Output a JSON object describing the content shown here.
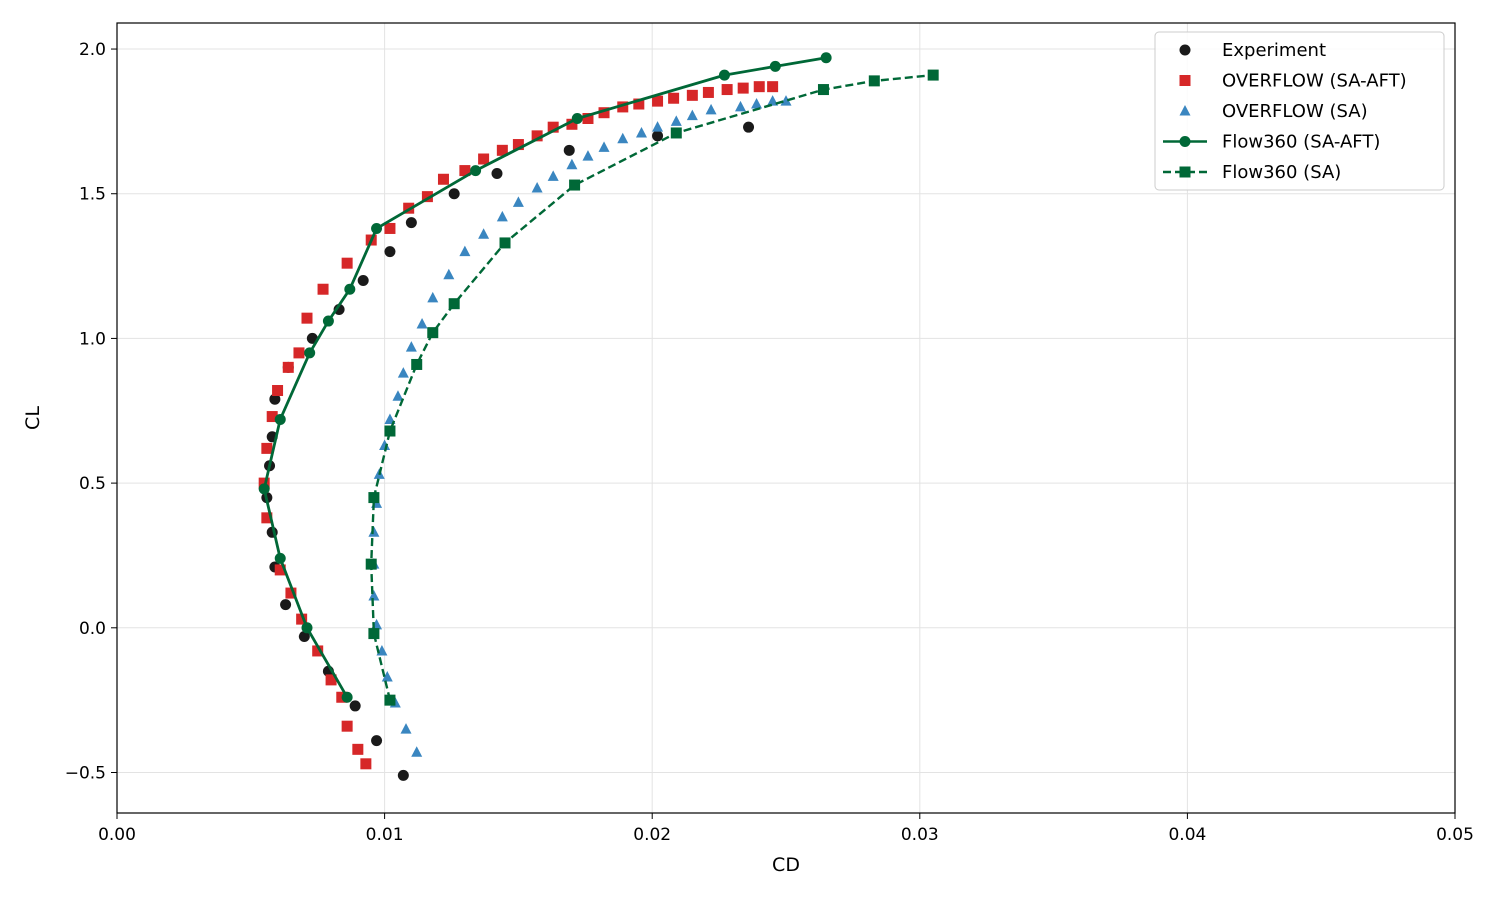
{
  "chart_data": {
    "type": "scatter",
    "xlabel": "CD",
    "ylabel": "CL",
    "xlim": [
      0.0,
      0.05
    ],
    "ylim": [
      -0.64,
      2.09
    ],
    "xticks": [
      0.0,
      0.01,
      0.02,
      0.03,
      0.04,
      0.05
    ],
    "xtick_labels": [
      "0.00",
      "0.01",
      "0.02",
      "0.03",
      "0.04",
      "0.05"
    ],
    "yticks": [
      -0.5,
      0.0,
      0.5,
      1.0,
      1.5,
      2.0
    ],
    "ytick_labels": [
      "−0.5",
      "0.0",
      "0.5",
      "1.0",
      "1.5",
      "2.0"
    ],
    "grid": true,
    "legend_position": "top-right",
    "series": [
      {
        "name": "Experiment",
        "style": "scatter",
        "marker": "circle",
        "color": "#1a1a1a",
        "x": [
          0.0107,
          0.0097,
          0.0089,
          0.0079,
          0.007,
          0.0063,
          0.0059,
          0.0058,
          0.0056,
          0.0057,
          0.0058,
          0.0059,
          0.0064,
          0.0073,
          0.0083,
          0.0092,
          0.0102,
          0.011,
          0.0126,
          0.0142,
          0.0169,
          0.0202,
          0.0236
        ],
        "y": [
          -0.51,
          -0.39,
          -0.27,
          -0.15,
          -0.03,
          0.08,
          0.21,
          0.33,
          0.45,
          0.56,
          0.66,
          0.79,
          0.9,
          1.0,
          1.1,
          1.2,
          1.3,
          1.4,
          1.5,
          1.57,
          1.65,
          1.7,
          1.73
        ]
      },
      {
        "name": "OVERFLOW (SA-AFT)",
        "style": "scatter",
        "marker": "square",
        "color": "#d62728",
        "x": [
          0.0093,
          0.009,
          0.0086,
          0.0084,
          0.008,
          0.0075,
          0.0069,
          0.0065,
          0.0061,
          0.0056,
          0.0055,
          0.0056,
          0.0058,
          0.006,
          0.0064,
          0.0068,
          0.0071,
          0.0077,
          0.0086,
          0.0095,
          0.0102,
          0.0109,
          0.0116,
          0.0122,
          0.013,
          0.0137,
          0.0144,
          0.015,
          0.0157,
          0.0163,
          0.017,
          0.0176,
          0.0182,
          0.0189,
          0.0195,
          0.0202,
          0.0208,
          0.0215,
          0.0221,
          0.0228,
          0.0234,
          0.024,
          0.0245
        ],
        "y": [
          -0.47,
          -0.42,
          -0.34,
          -0.24,
          -0.18,
          -0.08,
          0.03,
          0.12,
          0.2,
          0.38,
          0.5,
          0.62,
          0.73,
          0.82,
          0.9,
          0.95,
          1.07,
          1.17,
          1.26,
          1.34,
          1.38,
          1.45,
          1.49,
          1.55,
          1.58,
          1.62,
          1.65,
          1.67,
          1.7,
          1.73,
          1.74,
          1.76,
          1.78,
          1.8,
          1.81,
          1.82,
          1.83,
          1.84,
          1.85,
          1.86,
          1.865,
          1.87,
          1.87
        ]
      },
      {
        "name": "OVERFLOW (SA)",
        "style": "scatter",
        "marker": "triangle",
        "color": "#3a86c0",
        "x": [
          0.0112,
          0.0108,
          0.0104,
          0.0101,
          0.0099,
          0.0097,
          0.0096,
          0.0096,
          0.0096,
          0.0097,
          0.0098,
          0.01,
          0.0102,
          0.0105,
          0.0107,
          0.011,
          0.0114,
          0.0118,
          0.0124,
          0.013,
          0.0137,
          0.0144,
          0.015,
          0.0157,
          0.0163,
          0.017,
          0.0176,
          0.0182,
          0.0189,
          0.0196,
          0.0202,
          0.0209,
          0.0215,
          0.0222,
          0.0233,
          0.0239,
          0.0245,
          0.025
        ],
        "y": [
          -0.43,
          -0.35,
          -0.26,
          -0.17,
          -0.08,
          0.01,
          0.11,
          0.22,
          0.33,
          0.43,
          0.53,
          0.63,
          0.72,
          0.8,
          0.88,
          0.97,
          1.05,
          1.14,
          1.22,
          1.3,
          1.36,
          1.42,
          1.47,
          1.52,
          1.56,
          1.6,
          1.63,
          1.66,
          1.69,
          1.71,
          1.73,
          1.75,
          1.77,
          1.79,
          1.8,
          1.81,
          1.82,
          1.82
        ]
      },
      {
        "name": "Flow360 (SA-AFT)",
        "style": "line",
        "linestyle": "solid",
        "marker": "circle",
        "color": "#006837",
        "x": [
          0.0086,
          0.0071,
          0.0061,
          0.0055,
          0.0061,
          0.0072,
          0.0079,
          0.0087,
          0.0097,
          0.0134,
          0.0172,
          0.0227,
          0.0246,
          0.0265
        ],
        "y": [
          -0.24,
          0.0,
          0.24,
          0.48,
          0.72,
          0.95,
          1.06,
          1.17,
          1.38,
          1.58,
          1.76,
          1.91,
          1.94,
          1.97
        ]
      },
      {
        "name": "Flow360 (SA)",
        "style": "line",
        "linestyle": "dashed",
        "marker": "square",
        "color": "#006837",
        "x": [
          0.0102,
          0.0096,
          0.0095,
          0.0096,
          0.0102,
          0.0112,
          0.0118,
          0.0126,
          0.0145,
          0.0171,
          0.0209,
          0.0264,
          0.0283,
          0.0305
        ],
        "y": [
          -0.25,
          -0.02,
          0.22,
          0.45,
          0.68,
          0.91,
          1.02,
          1.12,
          1.33,
          1.53,
          1.71,
          1.86,
          1.89,
          1.91
        ]
      }
    ]
  }
}
